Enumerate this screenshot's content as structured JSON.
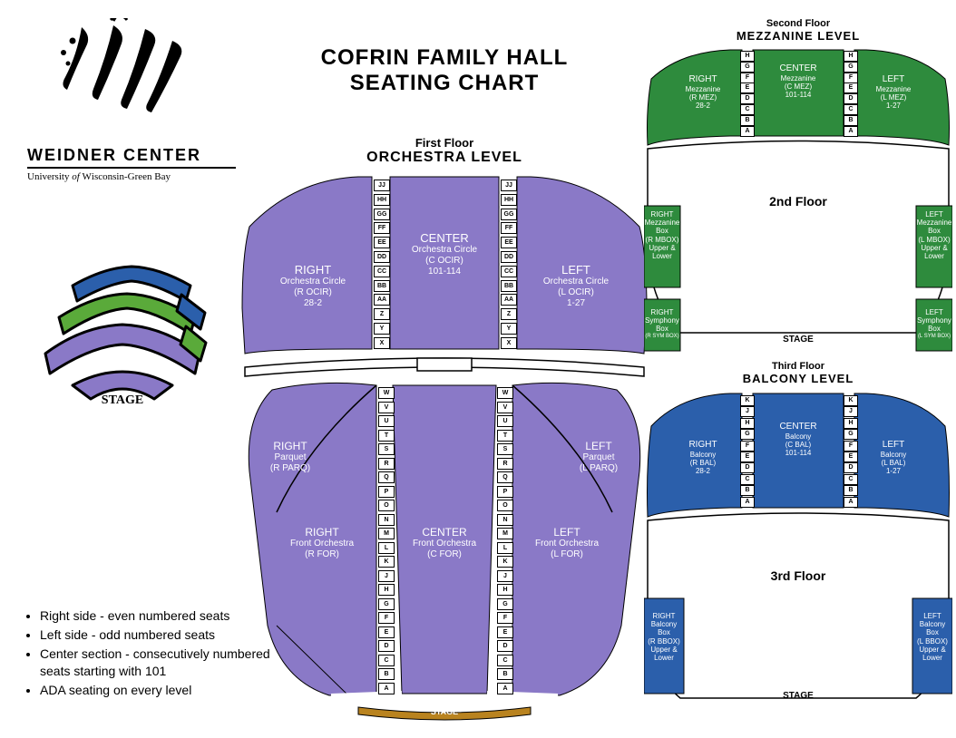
{
  "logo": {
    "brand_top": "WEIDNER CENTER",
    "brand_sub": "University of Wisconsin-Green Bay",
    "stage_label": "STAGE"
  },
  "title": {
    "line1": "Cofrin Family Hall",
    "line2": "Seating Chart"
  },
  "colors": {
    "orchestra": "#8a79c7",
    "mezzanine": "#2e8b3d",
    "balcony": "#2b5fab",
    "stage_arc": "#b9831f",
    "black": "#000000",
    "white": "#ffffff",
    "logo_green": "#5aaa3a",
    "logo_blue": "#2b5fab",
    "logo_purple": "#8a79c7"
  },
  "orchestra": {
    "header_level": "First Floor",
    "header_name": "Orchestra Level",
    "stage_label": "STAGE",
    "circle": {
      "right": {
        "l1": "RIGHT",
        "l2": "Orchestra Circle",
        "l3": "(R OCIR)",
        "l4": "28-2"
      },
      "center": {
        "l1": "CENTER",
        "l2": "Orchestra Circle",
        "l3": "(C OCIR)",
        "l4": "101-114"
      },
      "left": {
        "l1": "LEFT",
        "l2": "Orchestra Circle",
        "l3": "(L OCIR)",
        "l4": "1-27"
      }
    },
    "circle_rows": [
      "JJ",
      "HH",
      "GG",
      "FF",
      "EE",
      "DD",
      "CC",
      "BB",
      "AA",
      "Z",
      "Y",
      "X"
    ],
    "parquet": {
      "right": {
        "l1": "RIGHT",
        "l2": "Parquet",
        "l3": "(R PARQ)"
      },
      "left": {
        "l1": "LEFT",
        "l2": "Parquet",
        "l3": "(L PARQ)"
      }
    },
    "front": {
      "right": {
        "l1": "RIGHT",
        "l2": "Front Orchestra",
        "l3": "(R FOR)"
      },
      "center": {
        "l1": "CENTER",
        "l2": "Front Orchestra",
        "l3": "(C FOR)"
      },
      "left": {
        "l1": "LEFT",
        "l2": "Front Orchestra",
        "l3": "(L FOR)"
      }
    },
    "front_rows": [
      "W",
      "V",
      "U",
      "T",
      "S",
      "R",
      "Q",
      "P",
      "O",
      "N",
      "M",
      "L",
      "K",
      "J",
      "H",
      "G",
      "F",
      "E",
      "D",
      "C",
      "B",
      "A"
    ]
  },
  "mezzanine": {
    "header_level": "Second Floor",
    "header_name": "Mezzanine Level",
    "floor_label": "2nd Floor",
    "stage_label": "STAGE",
    "rows": [
      "H",
      "G",
      "F",
      "E",
      "D",
      "C",
      "B",
      "A"
    ],
    "sections": {
      "right": {
        "l1": "RIGHT",
        "l2": "Mezzanine",
        "l3": "(R MEZ)",
        "l4": "28-2"
      },
      "center": {
        "l1": "CENTER",
        "l2": "Mezzanine",
        "l3": "(C MEZ)",
        "l4": "101-114"
      },
      "left": {
        "l1": "LEFT",
        "l2": "Mezzanine",
        "l3": "(L MEZ)",
        "l4": "1-27"
      }
    },
    "boxes": {
      "right_mez": {
        "l1": "RIGHT",
        "l2": "Mezzanine",
        "l3": "Box",
        "l4": "(R MBOX)",
        "l5": "Upper &",
        "l6": "Lower"
      },
      "left_mez": {
        "l1": "LEFT",
        "l2": "Mezzanine",
        "l3": "Box",
        "l4": "(L MBOX)",
        "l5": "Upper &",
        "l6": "Lower"
      },
      "right_sym": {
        "l1": "RIGHT",
        "l2": "Symphony",
        "l3": "Box",
        "l4": "(R SYM BOX)"
      },
      "left_sym": {
        "l1": "LEFT",
        "l2": "Symphony",
        "l3": "Box",
        "l4": "(L SYM BOX)"
      }
    }
  },
  "balcony": {
    "header_level": "Third Floor",
    "header_name": "Balcony Level",
    "floor_label": "3rd Floor",
    "stage_label": "STAGE",
    "rows": [
      "K",
      "J",
      "H",
      "G",
      "F",
      "E",
      "D",
      "C",
      "B",
      "A"
    ],
    "sections": {
      "right": {
        "l1": "RIGHT",
        "l2": "Balcony",
        "l3": "(R BAL)",
        "l4": "28-2"
      },
      "center": {
        "l1": "CENTER",
        "l2": "Balcony",
        "l3": "(C BAL)",
        "l4": "101-114"
      },
      "left": {
        "l1": "LEFT",
        "l2": "Balcony",
        "l3": "(L BAL)",
        "l4": "1-27"
      }
    },
    "boxes": {
      "right": {
        "l1": "RIGHT",
        "l2": "Balcony",
        "l3": "Box",
        "l4": "(R BBOX)",
        "l5": "Upper &",
        "l6": "Lower"
      },
      "left": {
        "l1": "LEFT",
        "l2": "Balcony",
        "l3": "Box",
        "l4": "(L BBOX)",
        "l5": "Upper &",
        "l6": "Lower"
      }
    }
  },
  "notes": {
    "n1": "Right side - even numbered seats",
    "n2": "Left side - odd numbered seats",
    "n3a": "Center section - consecutively numbered",
    "n3b": "seats starting with 101",
    "n4": "ADA seating on every level"
  }
}
